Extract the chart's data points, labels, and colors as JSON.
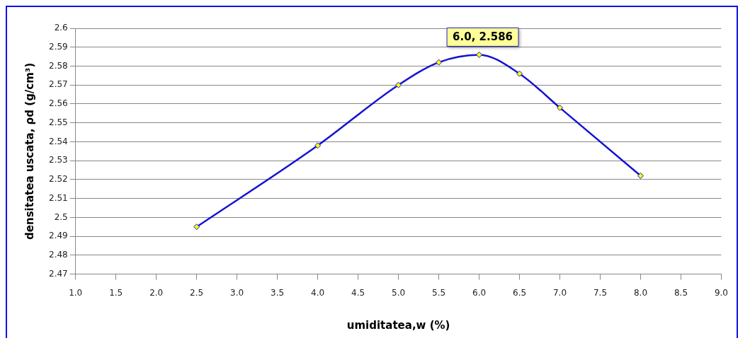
{
  "chart_data": {
    "type": "line",
    "xlabel": "umiditatea,w (%)",
    "ylabel": "densitatea uscata, ρd (g/cm³)",
    "x": [
      2.5,
      4.0,
      5.0,
      5.5,
      6.0,
      6.5,
      7.0,
      8.0
    ],
    "series": [
      {
        "color": "#1414d2",
        "values": [
          2.495,
          2.538,
          2.57,
          2.582,
          2.586,
          2.576,
          2.558,
          2.522
        ]
      }
    ],
    "xlim": [
      1,
      9
    ],
    "xticks": [
      {
        "value": 1,
        "label": "1.0"
      },
      {
        "value": 1.5,
        "label": "1.5"
      },
      {
        "value": 2,
        "label": "2.0"
      },
      {
        "value": 2.5,
        "label": "2.5"
      },
      {
        "value": 3,
        "label": "3.0"
      },
      {
        "value": 3.5,
        "label": "3.5"
      },
      {
        "value": 4,
        "label": "4.0"
      },
      {
        "value": 4.5,
        "label": "4.5"
      },
      {
        "value": 5,
        "label": "5.0"
      },
      {
        "value": 5.5,
        "label": "5.5"
      },
      {
        "value": 6,
        "label": "6.0"
      },
      {
        "value": 6.5,
        "label": "6.5"
      },
      {
        "value": 7,
        "label": "7.0"
      },
      {
        "value": 7.5,
        "label": "7.5"
      },
      {
        "value": 8,
        "label": "8.0"
      },
      {
        "value": 8.5,
        "label": "8.5"
      },
      {
        "value": 9,
        "label": "9.0"
      }
    ],
    "ylim": [
      2.47,
      2.6
    ],
    "yticks": [
      2.47,
      2.48,
      2.49,
      2.5,
      2.51,
      2.52,
      2.53,
      2.54,
      2.55,
      2.56,
      2.57,
      2.58,
      2.59,
      2.6
    ],
    "annotations": [
      {
        "text": "6.0, 2.586",
        "x": 6,
        "y": 2.586
      }
    ],
    "grid": "y",
    "legend": false,
    "marker": "diamond",
    "line_style": "solid"
  }
}
